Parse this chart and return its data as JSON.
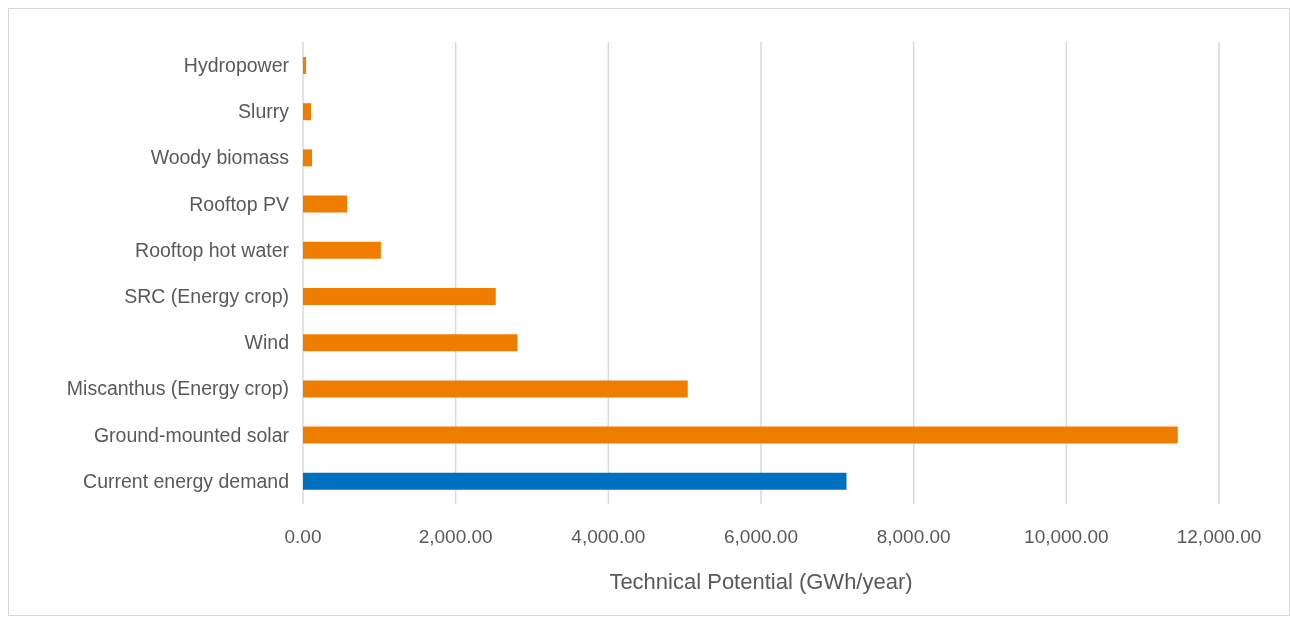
{
  "chart_data": {
    "type": "bar",
    "orientation": "horizontal",
    "xlabel": "Technical Potential (GWh/year)",
    "categories": [
      "Hydropower",
      "Slurry",
      "Woody biomass",
      "Rooftop PV",
      "Rooftop hot water",
      "SRC (Energy crop)",
      "Wind",
      "Miscanthus (Energy crop)",
      "Ground-mounted solar",
      "Current energy demand"
    ],
    "values": [
      40,
      105,
      118,
      578,
      1020,
      2525,
      2810,
      5040,
      11460,
      7120
    ],
    "colors": [
      "#ef7d00",
      "#ef7d00",
      "#ef7d00",
      "#ef7d00",
      "#ef7d00",
      "#ef7d00",
      "#ef7d00",
      "#ef7d00",
      "#ef7d00",
      "#0070c0"
    ],
    "xlim": [
      0,
      12000
    ],
    "xticks": [
      {
        "value": 0,
        "label": "0.00"
      },
      {
        "value": 2000,
        "label": "2,000.00"
      },
      {
        "value": 4000,
        "label": "4,000.00"
      },
      {
        "value": 6000,
        "label": "6,000.00"
      },
      {
        "value": 8000,
        "label": "8,000.00"
      },
      {
        "value": 10000,
        "label": "10,000.00"
      },
      {
        "value": 12000,
        "label": "12,000.00"
      }
    ],
    "grid": "x",
    "legend": false
  }
}
